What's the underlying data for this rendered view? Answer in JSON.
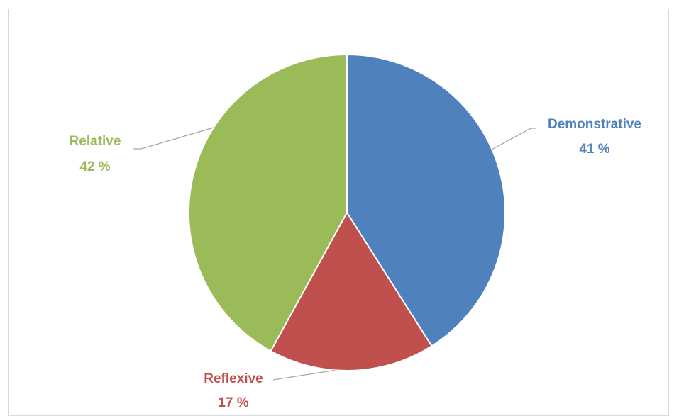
{
  "chart_data": {
    "type": "pie",
    "slices": [
      {
        "label": "Demonstrative",
        "value": 41,
        "value_text": "41 %",
        "color": "#4f81bd"
      },
      {
        "label": "Reflexive",
        "value": 17,
        "value_text": "17 %",
        "color": "#c0504d"
      },
      {
        "label": "Relative",
        "value": 42,
        "value_text": "42 %",
        "color": "#9bbb59"
      }
    ],
    "start_angle_deg": 0,
    "direction": "clockwise",
    "data_labels": "outside-with-leader-lines",
    "legend": "none",
    "leader_line_color": "#a6a6a6"
  }
}
